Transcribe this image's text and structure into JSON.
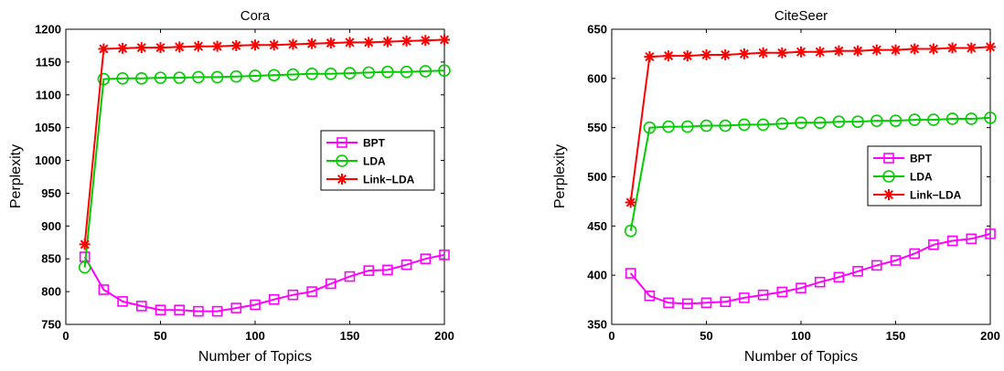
{
  "chart_data": [
    {
      "type": "line",
      "title": "Cora",
      "xlabel": "Number of Topics",
      "ylabel": "Perplexity",
      "xlim": [
        0,
        200
      ],
      "ylim": [
        750,
        1200
      ],
      "xticks": [
        0,
        50,
        100,
        150,
        200
      ],
      "yticks": [
        750,
        800,
        850,
        900,
        950,
        1000,
        1050,
        1100,
        1150,
        1200
      ],
      "legend_position": "right-center",
      "x": [
        10,
        20,
        30,
        40,
        50,
        60,
        70,
        80,
        90,
        100,
        110,
        120,
        130,
        140,
        150,
        160,
        170,
        180,
        190,
        200
      ],
      "series": [
        {
          "name": "BPT",
          "color": "#ff00ff",
          "marker": "square",
          "values": [
            853,
            803,
            785,
            778,
            772,
            772,
            770,
            770,
            775,
            780,
            788,
            795,
            800,
            812,
            823,
            832,
            833,
            841,
            850,
            856
          ]
        },
        {
          "name": "LDA",
          "color": "#00cc00",
          "marker": "circle",
          "values": [
            837,
            1124,
            1125,
            1125,
            1126,
            1126,
            1127,
            1127,
            1128,
            1129,
            1130,
            1131,
            1132,
            1132,
            1133,
            1134,
            1135,
            1135,
            1136,
            1137
          ]
        },
        {
          "name": "Link−LDA",
          "color": "#ff0000",
          "marker": "star",
          "values": [
            872,
            1170,
            1171,
            1172,
            1172,
            1173,
            1174,
            1174,
            1175,
            1176,
            1176,
            1177,
            1178,
            1179,
            1180,
            1180,
            1181,
            1182,
            1183,
            1184
          ]
        }
      ]
    },
    {
      "type": "line",
      "title": "CiteSeer",
      "xlabel": "Number of Topics",
      "ylabel": "Perplexity",
      "xlim": [
        0,
        200
      ],
      "ylim": [
        350,
        650
      ],
      "xticks": [
        0,
        50,
        100,
        150,
        200
      ],
      "yticks": [
        350,
        400,
        450,
        500,
        550,
        600,
        650
      ],
      "legend_position": "right-center",
      "x": [
        10,
        20,
        30,
        40,
        50,
        60,
        70,
        80,
        90,
        100,
        110,
        120,
        130,
        140,
        150,
        160,
        170,
        180,
        190,
        200
      ],
      "series": [
        {
          "name": "BPT",
          "color": "#ff00ff",
          "marker": "square",
          "values": [
            402,
            379,
            372,
            371,
            372,
            373,
            377,
            380,
            383,
            387,
            393,
            398,
            404,
            410,
            415,
            422,
            431,
            435,
            437,
            442
          ]
        },
        {
          "name": "LDA",
          "color": "#00cc00",
          "marker": "circle",
          "values": [
            445,
            550,
            551,
            551,
            552,
            552,
            553,
            553,
            554,
            555,
            555,
            556,
            556,
            557,
            557,
            558,
            558,
            559,
            559,
            560
          ]
        },
        {
          "name": "Link−LDA",
          "color": "#ff0000",
          "marker": "star",
          "values": [
            474,
            622,
            623,
            623,
            624,
            624,
            625,
            626,
            626,
            627,
            627,
            628,
            628,
            629,
            629,
            630,
            630,
            631,
            631,
            632
          ]
        }
      ]
    }
  ]
}
